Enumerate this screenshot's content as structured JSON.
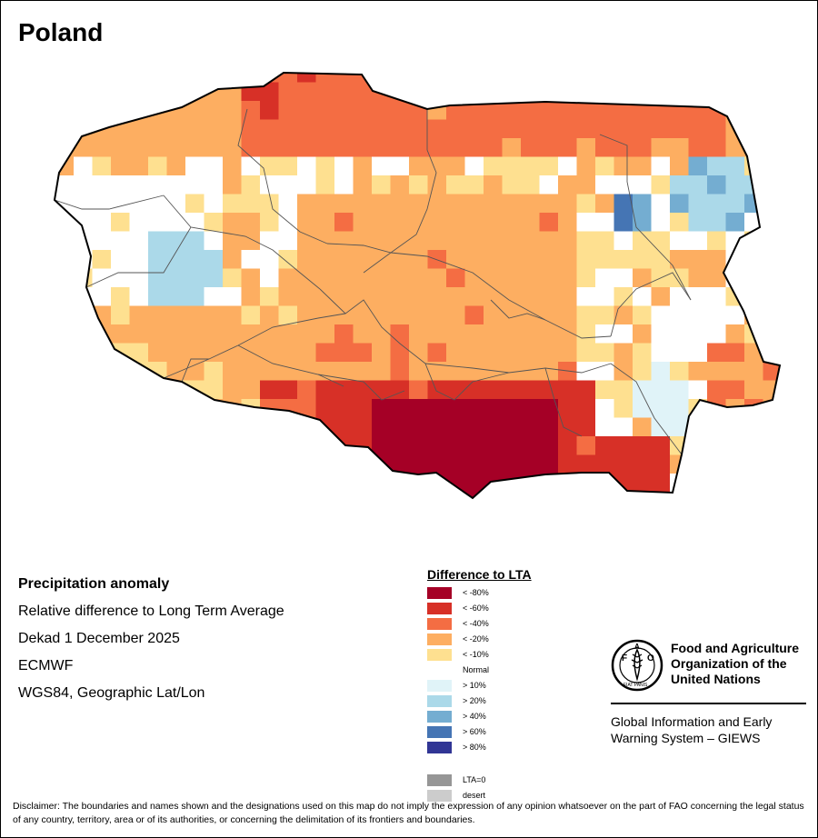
{
  "title": "Poland",
  "info": {
    "heading": "Precipitation anomaly",
    "subtitle": "Relative difference to Long Term Average",
    "period": "Dekad 1 December 2025",
    "source": "ECMWF",
    "projection": "WGS84, Geographic Lat/Lon"
  },
  "legend": {
    "title": "Difference to LTA",
    "items": [
      {
        "label": "< -80%",
        "color": "#a50026"
      },
      {
        "label": "< -60%",
        "color": "#d73027"
      },
      {
        "label": "< -40%",
        "color": "#f46d43"
      },
      {
        "label": "< -20%",
        "color": "#fdae61"
      },
      {
        "label": "< -10%",
        "color": "#fee090"
      },
      {
        "label": "Normal",
        "color": "#ffffff"
      },
      {
        "label": "> 10%",
        "color": "#e0f3f8"
      },
      {
        "label": "> 20%",
        "color": "#abd9e9"
      },
      {
        "label": "> 40%",
        "color": "#74add1"
      },
      {
        "label": "> 60%",
        "color": "#4575b4"
      },
      {
        "label": "> 80%",
        "color": "#313695"
      }
    ],
    "extra": [
      {
        "label": "LTA=0",
        "color": "#969696"
      },
      {
        "label": "desert",
        "color": "#cccccc"
      }
    ]
  },
  "org": {
    "name_line1": "Food and Agriculture",
    "name_line2": "Organization of the",
    "name_line3": "United Nations",
    "giews_line1": "Global Information and Early",
    "giews_line2": "Warning System – GIEWS",
    "logo_text": "FAO",
    "logo_motto": "FIAT PANIS"
  },
  "disclaimer": "Disclaimer: The boundaries and names shown and the designations used on this map do not imply the expression of any opinion whatsoever on the part of FAO concerning the legal status of any country, territory, area or of its authorities, or concerning the delimitation of its frontiers and boundaries."
}
